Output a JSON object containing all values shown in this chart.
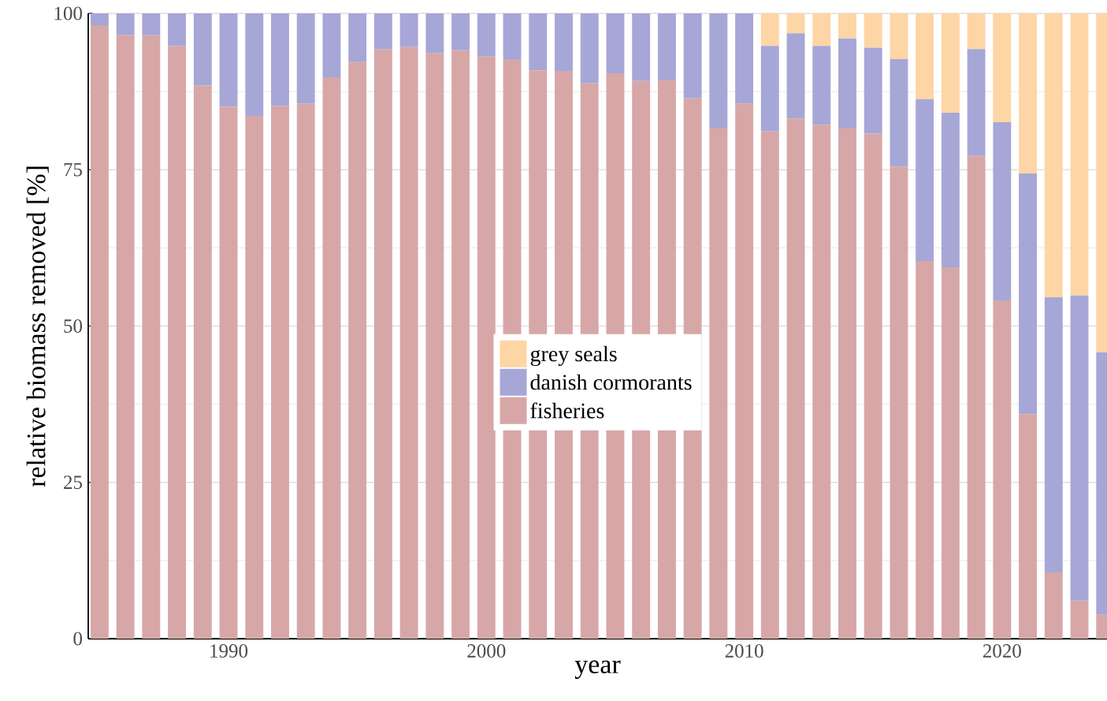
{
  "chart_data": {
    "type": "bar",
    "stacked": true,
    "xlabel": "year",
    "ylabel": "relative biomass removed [%]",
    "x": [
      1985,
      1986,
      1987,
      1988,
      1989,
      1990,
      1991,
      1992,
      1993,
      1994,
      1995,
      1996,
      1997,
      1998,
      1999,
      2000,
      2001,
      2002,
      2003,
      2004,
      2005,
      2006,
      2007,
      2008,
      2009,
      2010,
      2011,
      2012,
      2013,
      2014,
      2015,
      2016,
      2017,
      2018,
      2019,
      2020,
      2021,
      2022,
      2023,
      2024
    ],
    "series": [
      {
        "name": "fisheries",
        "color": "#d7a7a7",
        "values": [
          98.1,
          96.5,
          96.5,
          94.8,
          88.5,
          85.1,
          83.6,
          85.2,
          85.6,
          89.8,
          92.2,
          94.3,
          94.6,
          93.6,
          94.1,
          93.1,
          92.7,
          90.9,
          90.8,
          88.8,
          90.4,
          89.2,
          89.4,
          86.4,
          81.6,
          85.6,
          81.1,
          83.2,
          82.2,
          81.6,
          80.8,
          75.5,
          60.4,
          59.4,
          77.2,
          54.1,
          35.9,
          10.6,
          6.1,
          3.8
        ]
      },
      {
        "name": "danish cormorants",
        "color": "#a6a7d7",
        "values": [
          1.9,
          3.5,
          3.5,
          5.2,
          11.5,
          14.9,
          16.4,
          14.8,
          14.4,
          10.2,
          7.8,
          5.7,
          5.4,
          6.4,
          5.9,
          6.9,
          7.3,
          9.1,
          9.2,
          11.2,
          9.6,
          10.8,
          10.6,
          13.6,
          18.4,
          14.4,
          13.7,
          13.6,
          12.6,
          14.4,
          13.7,
          17.2,
          25.9,
          24.7,
          17.1,
          28.5,
          38.5,
          44.0,
          48.8,
          42.0
        ]
      },
      {
        "name": "grey seals",
        "color": "#fed5a4",
        "values": [
          null,
          null,
          null,
          null,
          null,
          null,
          null,
          null,
          null,
          null,
          null,
          null,
          null,
          null,
          null,
          null,
          null,
          null,
          null,
          null,
          null,
          null,
          null,
          null,
          null,
          null,
          5.2,
          3.2,
          5.2,
          4.0,
          5.5,
          7.3,
          13.7,
          15.9,
          5.7,
          17.4,
          25.6,
          45.4,
          45.1,
          54.2
        ]
      }
    ],
    "xlim": [
      1984.56,
      2024.07
    ],
    "xticks": [
      1990,
      2000,
      2010,
      2020
    ],
    "ylim": [
      0,
      100
    ],
    "yticks": [
      0,
      25,
      50,
      75,
      100
    ],
    "grid": true,
    "legend": "center"
  }
}
